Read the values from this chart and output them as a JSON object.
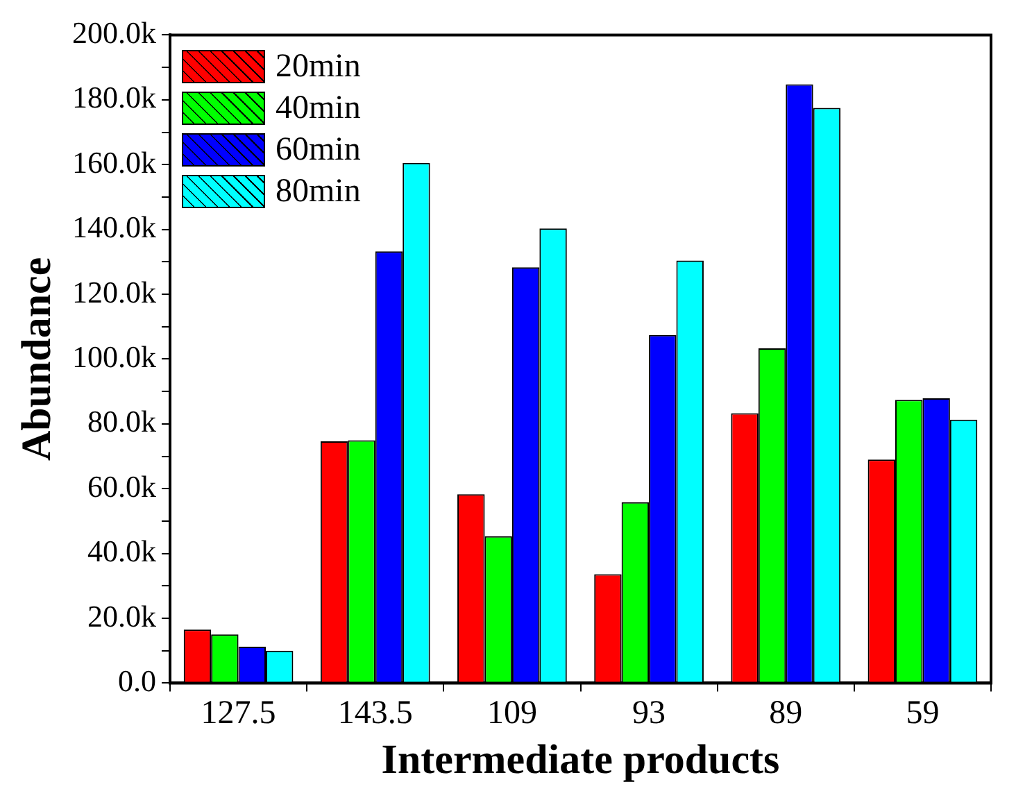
{
  "chart_data": {
    "type": "bar",
    "xlabel": "Intermediate products",
    "ylabel": "Abundance",
    "categories": [
      "127.5",
      "143.5",
      "109",
      "93",
      "89",
      "59"
    ],
    "series": [
      {
        "name": "20min",
        "color": "#ff0000",
        "values": [
          16500,
          74600,
          58300,
          33600,
          83300,
          69000
        ]
      },
      {
        "name": "40min",
        "color": "#00ff00",
        "values": [
          15000,
          74900,
          45300,
          55800,
          103300,
          87400
        ]
      },
      {
        "name": "60min",
        "color": "#0000ff",
        "values": [
          11200,
          133200,
          128300,
          107400,
          184800,
          87900
        ]
      },
      {
        "name": "80min",
        "color": "#00ffff",
        "values": [
          10000,
          160500,
          140300,
          130400,
          177500,
          81300
        ]
      }
    ],
    "ylim": [
      0,
      200000
    ],
    "yticks": [
      {
        "value": 0,
        "label": "0.0"
      },
      {
        "value": 10000,
        "label": null
      },
      {
        "value": 20000,
        "label": "20.0k"
      },
      {
        "value": 30000,
        "label": null
      },
      {
        "value": 40000,
        "label": "40.0k"
      },
      {
        "value": 50000,
        "label": null
      },
      {
        "value": 60000,
        "label": "60.0k"
      },
      {
        "value": 70000,
        "label": null
      },
      {
        "value": 80000,
        "label": "80.0k"
      },
      {
        "value": 90000,
        "label": null
      },
      {
        "value": 100000,
        "label": "100.0k"
      },
      {
        "value": 110000,
        "label": null
      },
      {
        "value": 120000,
        "label": "120.0k"
      },
      {
        "value": 130000,
        "label": null
      },
      {
        "value": 140000,
        "label": "140.0k"
      },
      {
        "value": 150000,
        "label": null
      },
      {
        "value": 160000,
        "label": "160.0k"
      },
      {
        "value": 170000,
        "label": null
      },
      {
        "value": 180000,
        "label": "180.0k"
      },
      {
        "value": 190000,
        "label": null
      },
      {
        "value": 200000,
        "label": "200.0k"
      }
    ],
    "grid": false,
    "legend": "top left"
  }
}
